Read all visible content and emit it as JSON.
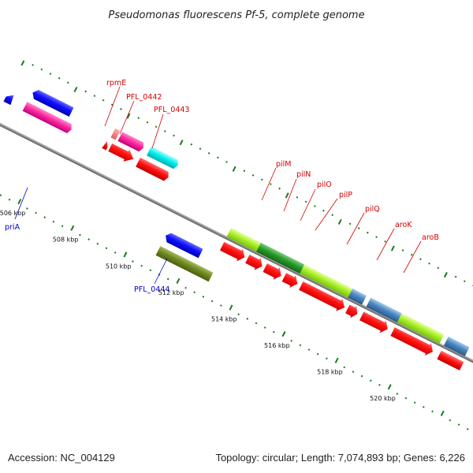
{
  "title": "Pseudomonas fluorescens Pf-5, complete genome",
  "footer": {
    "accession": "Accession: NC_004129",
    "summary": "Topology: circular; Length: 7,074,893 bp; Genes: 6,226"
  },
  "colors": {
    "backbone": "#8a8a8a",
    "tick": "#1a7a1a",
    "cds_red": "#ff1010",
    "label_red": "#d40000",
    "label_blue": "#0000c8"
  },
  "kbp_labels": [
    "506 kbp",
    "508 kbp",
    "510 kbp",
    "512 kbp",
    "514 kbp",
    "516 kbp",
    "518 kbp",
    "520 kbp"
  ],
  "gene_labels": {
    "rpmE": "rpmE",
    "PFL_0442": "PFL_0442",
    "PFL_0443": "PFL_0443",
    "pilM": "pilM",
    "pilN": "pilN",
    "pilO": "pilO",
    "pilP": "pilP",
    "pilQ": "pilQ",
    "aroK": "aroK",
    "aroB": "aroB",
    "priA": "priA",
    "PFL_0444": "PFL_0444"
  }
}
